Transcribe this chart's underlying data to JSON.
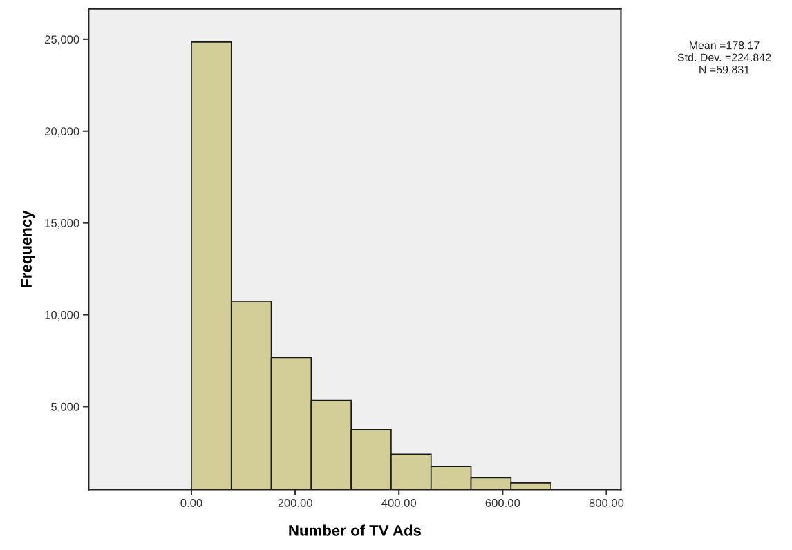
{
  "chart_data": {
    "type": "histogram",
    "xlabel": "Number of TV Ads",
    "ylabel": "Frequency",
    "bins": [
      0,
      77,
      154,
      231,
      308,
      385,
      462,
      539,
      616,
      693
    ],
    "values": [
      24850,
      10740,
      7670,
      5330,
      3745,
      2410,
      1740,
      1125,
      845
    ],
    "color": "#d3ce97",
    "xlim": [
      -198,
      828
    ],
    "xticks": [
      {
        "value": 0,
        "label": "0.00"
      },
      {
        "value": 200,
        "label": "200.00"
      },
      {
        "value": 400,
        "label": "400.00"
      },
      {
        "value": 600,
        "label": "600.00"
      },
      {
        "value": 800,
        "label": "800.00"
      }
    ],
    "ylim": [
      485,
      26660
    ],
    "yticks": [
      {
        "value": 5000,
        "label": "5,000"
      },
      {
        "value": 10000,
        "label": "10,000"
      },
      {
        "value": 15000,
        "label": "15,000"
      },
      {
        "value": 20000,
        "label": "20,000"
      },
      {
        "value": 25000,
        "label": "25,000"
      }
    ],
    "grid": false,
    "legend": false,
    "annotations": [
      "Mean =178.17",
      "Std. Dev. =224.842",
      "N =59,831"
    ]
  }
}
